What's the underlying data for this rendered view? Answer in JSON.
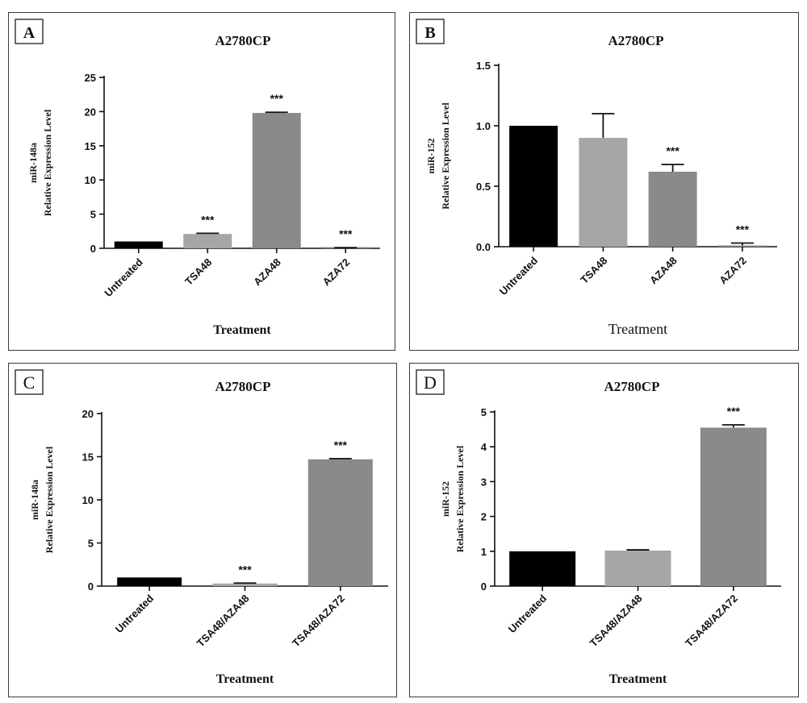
{
  "chart_data": [
    {
      "type": "bar",
      "panel": "A",
      "title": "A2780CP",
      "ylabel": [
        "miR-148a",
        "Relative Expression Level"
      ],
      "xlabel": "Treatment",
      "ylim": [
        0,
        25
      ],
      "yticks": [
        "0",
        "5",
        "10",
        "15",
        "20",
        "25"
      ],
      "categories": [
        "Untreated",
        "TSA48",
        "AZA48",
        "AZA72"
      ],
      "values": [
        1.0,
        2.1,
        19.8,
        0.05
      ],
      "errors": [
        0.0,
        0.1,
        0.1,
        0.05
      ],
      "significance": [
        "",
        "***",
        "***",
        "***"
      ],
      "colors": [
        "#000000",
        "#a6a6a6",
        "#8a8a8a",
        "#8a8a8a"
      ]
    },
    {
      "type": "bar",
      "panel": "B",
      "title": "A2780CP",
      "ylabel": [
        "miR-152",
        "Relative Expression Level"
      ],
      "xlabel": "Treatment",
      "ylim": [
        0,
        1.5
      ],
      "yticks": [
        "0.0",
        "0.5",
        "1.0",
        "1.5"
      ],
      "categories": [
        "Untreated",
        "TSA48",
        "AZA48",
        "AZA72"
      ],
      "values": [
        1.0,
        0.9,
        0.62,
        0.01
      ],
      "errors": [
        0.0,
        0.2,
        0.06,
        0.02
      ],
      "significance": [
        "",
        "",
        "***",
        "***"
      ],
      "colors": [
        "#000000",
        "#a6a6a6",
        "#8a8a8a",
        "#8a8a8a"
      ]
    },
    {
      "type": "bar",
      "panel": "C",
      "title": "A2780CP",
      "ylabel": [
        "miR-148a",
        "Relative Expression Level"
      ],
      "xlabel": "Treatment",
      "ylim": [
        0,
        20
      ],
      "yticks": [
        "0",
        "5",
        "10",
        "15",
        "20"
      ],
      "categories": [
        "Untreated",
        "TSA48/AZA48",
        "TSA48/AZA72"
      ],
      "values": [
        1.0,
        0.3,
        14.7
      ],
      "errors": [
        0.0,
        0.05,
        0.08
      ],
      "significance": [
        "",
        "***",
        "***"
      ],
      "colors": [
        "#000000",
        "#a6a6a6",
        "#8a8a8a"
      ]
    },
    {
      "type": "bar",
      "panel": "D",
      "title": "A2780CP",
      "ylabel": [
        "miR-152",
        "Relative Expression Level"
      ],
      "xlabel": "Treatment",
      "ylim": [
        0,
        5
      ],
      "yticks": [
        "0",
        "1",
        "2",
        "3",
        "4",
        "5"
      ],
      "categories": [
        "Untreated",
        "TSA48/AZA48",
        "TSA48/AZA72"
      ],
      "values": [
        1.0,
        1.02,
        4.55
      ],
      "errors": [
        0.0,
        0.02,
        0.08
      ],
      "significance": [
        "",
        "",
        "***"
      ],
      "colors": [
        "#000000",
        "#a6a6a6",
        "#8a8a8a"
      ]
    }
  ]
}
